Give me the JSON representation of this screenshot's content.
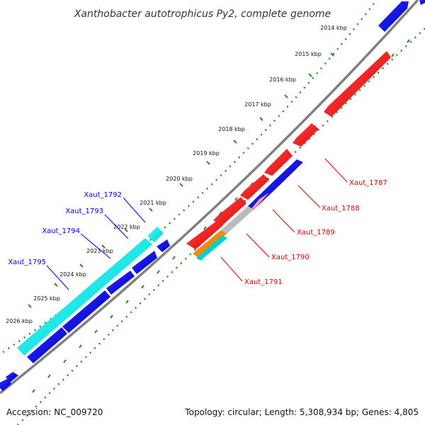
{
  "title": "Xanthobacter autotrophicus Py2, complete genome",
  "footer": {
    "accession": "Accession: NC_009720",
    "summary": "Topology: circular; Length: 5,308,934 bp; Genes: 4,805"
  },
  "ticks": [
    {
      "label": "2014 kbp"
    },
    {
      "label": "2015 kbp"
    },
    {
      "label": "2016 kbp"
    },
    {
      "label": "2017 kbp"
    },
    {
      "label": "2018 kbp"
    },
    {
      "label": "2019 kbp"
    },
    {
      "label": "2020 kbp"
    },
    {
      "label": "2021 kbp"
    },
    {
      "label": "2022 kbp"
    },
    {
      "label": "2023 kbp"
    },
    {
      "label": "2024 kbp"
    },
    {
      "label": "2025 kbp"
    },
    {
      "label": "2026 kbp"
    }
  ],
  "gene_labels_left": [
    {
      "label": "Xaut_1792"
    },
    {
      "label": "Xaut_1793"
    },
    {
      "label": "Xaut_1794"
    },
    {
      "label": "Xaut_1795"
    }
  ],
  "gene_labels_right": [
    {
      "label": "Xaut_1787"
    },
    {
      "label": "Xaut_1788"
    },
    {
      "label": "Xaut_1789"
    },
    {
      "label": "Xaut_1790"
    },
    {
      "label": "Xaut_1791"
    }
  ],
  "colors": {
    "backbone": "#808080",
    "forward": "#ff0000",
    "reverse": "#0000ee",
    "cyan": "#00e5e5",
    "grey": "#bbbbbb",
    "pink": "#f4a0a0",
    "orange": "#f08a00",
    "tick": "#2a8a2a",
    "label_left": "#0000cc",
    "label_right": "#cc0000"
  }
}
